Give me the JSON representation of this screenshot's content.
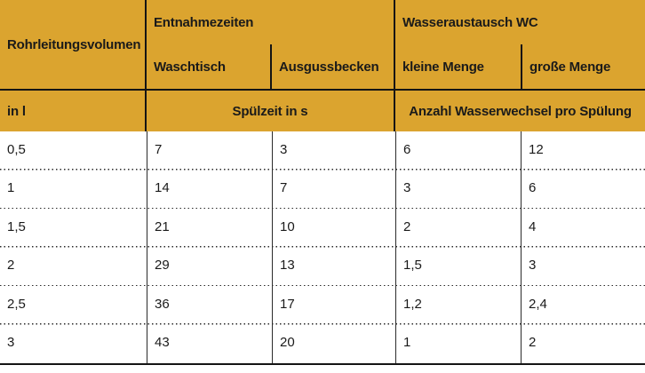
{
  "chart_data": {
    "type": "table",
    "title": "",
    "header": {
      "col_volume": "Rohrleitungsvolumen",
      "group_entnahme": "Entnahmezeiten",
      "group_wasseraustausch": "Wasseraustausch WC",
      "sub_waschtisch": "Waschtisch",
      "sub_ausgussbecken": "Ausgussbecken",
      "sub_kleine_menge": "kleine Menge",
      "sub_grosse_menge": "große Menge"
    },
    "units_row": {
      "volume_unit": "in l",
      "spuelzeit": "Spülzeit in s",
      "wasserwechsel": "Anzahl Wasserwechsel pro Spülung"
    },
    "columns": [
      "Rohrleitungsvolumen in l",
      "Spülzeit Waschtisch in s",
      "Spülzeit Ausgussbecken in s",
      "Wasserwechsel kleine Menge",
      "Wasserwechsel große Menge"
    ],
    "rows": [
      [
        "0,5",
        "7",
        "3",
        "6",
        "12"
      ],
      [
        "1",
        "14",
        "7",
        "3",
        "6"
      ],
      [
        "1,5",
        "21",
        "10",
        "2",
        "4"
      ],
      [
        "2",
        "29",
        "13",
        "1,5",
        "3"
      ],
      [
        "2,5",
        "36",
        "17",
        "1,2",
        "2,4"
      ],
      [
        "3",
        "43",
        "20",
        "1",
        "2"
      ]
    ],
    "layout": {
      "grid": "solid vertical rules, dotted horizontal row separators, solid rule under header and at table bottom"
    }
  },
  "colors": {
    "header_bg": "#dba42f",
    "rule": "#141414",
    "text": "#1a1a1a",
    "body_bg": "#ffffff"
  }
}
